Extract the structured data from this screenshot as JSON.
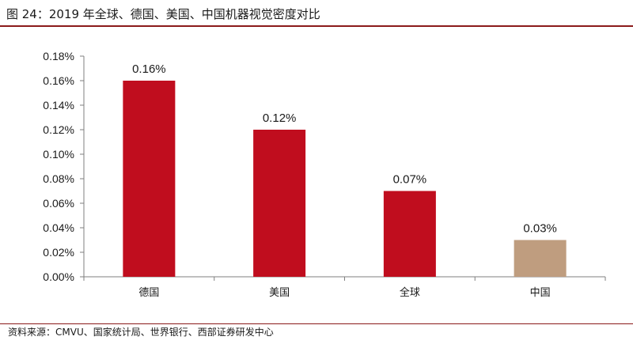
{
  "header": {
    "title": "图 24：2019 年全球、德国、美国、中国机器视觉密度对比"
  },
  "footer": {
    "source": "资料来源：CMVU、国家统计局、世界银行、西部证券研发中心"
  },
  "colors": {
    "primary_bar": "#c00d1e",
    "highlight_bar": "#bf9d7f",
    "rule": "#8b1a1a"
  },
  "chart_data": {
    "type": "bar",
    "title": "",
    "xlabel": "",
    "ylabel": "",
    "categories": [
      "德国",
      "美国",
      "全球",
      "中国"
    ],
    "values": [
      0.16,
      0.12,
      0.07,
      0.03
    ],
    "value_labels": [
      "0.16%",
      "0.12%",
      "0.07%",
      "0.03%"
    ],
    "unit": "%",
    "ylim": [
      0,
      0.18
    ],
    "yticks": [
      0,
      0.02,
      0.04,
      0.06,
      0.08,
      0.1,
      0.12,
      0.14,
      0.16,
      0.18
    ],
    "ytick_labels": [
      "0.00%",
      "0.02%",
      "0.04%",
      "0.06%",
      "0.08%",
      "0.10%",
      "0.12%",
      "0.14%",
      "0.16%",
      "0.18%"
    ],
    "bar_colors": [
      "#c00d1e",
      "#c00d1e",
      "#c00d1e",
      "#bf9d7f"
    ],
    "grid": false,
    "legend": "none"
  }
}
